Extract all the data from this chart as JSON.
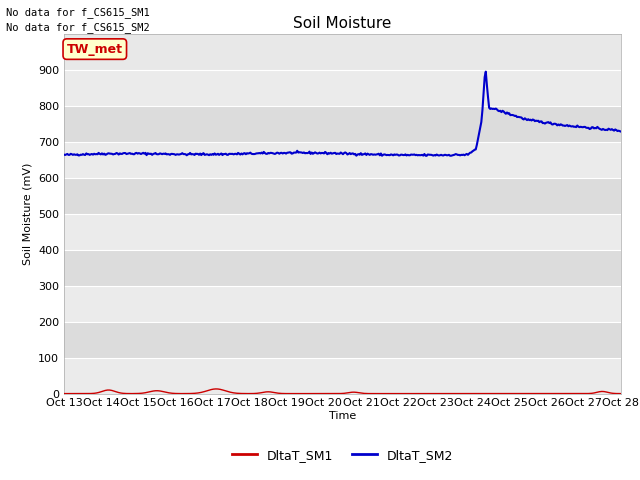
{
  "title": "Soil Moisture",
  "ylabel": "Soil Moisture (mV)",
  "xlabel": "Time",
  "nodata_text1": "No data for f_CS615_SM1",
  "nodata_text2": "No data for f_CS615_SM2",
  "tw_met_label": "TW_met",
  "ylim": [
    0,
    1000
  ],
  "yticks": [
    0,
    100,
    200,
    300,
    400,
    500,
    600,
    700,
    800,
    900
  ],
  "xtick_labels": [
    "Oct 13",
    "Oct 14",
    "Oct 15",
    "Oct 16",
    "Oct 17",
    "Oct 18",
    "Oct 19",
    "Oct 20",
    "Oct 21",
    "Oct 22",
    "Oct 23",
    "Oct 24",
    "Oct 25",
    "Oct 26",
    "Oct 27",
    "Oct 28"
  ],
  "fig_bg_color": "#ffffff",
  "plot_bg_color": "#e8e8e8",
  "band_color_light": "#ebebeb",
  "band_color_dark": "#dcdcdc",
  "line_color_sm1": "#cc0000",
  "line_color_sm2": "#0000cc",
  "legend_sm1": "DltaT_SM1",
  "legend_sm2": "DltaT_SM2",
  "tw_met_bg": "#ffffcc",
  "tw_met_border": "#cc0000",
  "tw_met_text_color": "#cc0000",
  "grid_color": "#ffffff",
  "title_fontsize": 11,
  "axis_label_fontsize": 8,
  "tick_fontsize": 8
}
